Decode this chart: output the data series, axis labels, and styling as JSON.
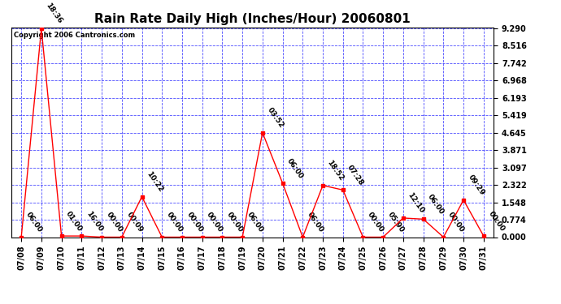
{
  "title": "Rain Rate Daily High (Inches/Hour) 20060801",
  "copyright": "Copyright 2006 Cantronics.com",
  "background_color": "#ffffff",
  "plot_bg_color": "#ffffff",
  "line_color": "red",
  "grid_color": "blue",
  "y_ticks": [
    0.0,
    0.774,
    1.548,
    2.322,
    3.097,
    3.871,
    4.645,
    5.419,
    6.193,
    6.968,
    7.742,
    8.516,
    9.29
  ],
  "data_points": [
    {
      "day": "07/08",
      "value": 0.0,
      "label": "06:00"
    },
    {
      "day": "07/09",
      "value": 9.29,
      "label": "18:36"
    },
    {
      "day": "07/10",
      "value": 0.05,
      "label": "01:00"
    },
    {
      "day": "07/11",
      "value": 0.05,
      "label": "16:00"
    },
    {
      "day": "07/12",
      "value": 0.0,
      "label": "00:00"
    },
    {
      "day": "07/13",
      "value": 0.0,
      "label": "00:09"
    },
    {
      "day": "07/14",
      "value": 1.8,
      "label": "10:22"
    },
    {
      "day": "07/15",
      "value": 0.0,
      "label": "00:00"
    },
    {
      "day": "07/16",
      "value": 0.0,
      "label": "00:00"
    },
    {
      "day": "07/17",
      "value": 0.0,
      "label": "00:00"
    },
    {
      "day": "07/18",
      "value": 0.0,
      "label": "00:00"
    },
    {
      "day": "07/19",
      "value": 0.0,
      "label": "06:00"
    },
    {
      "day": "07/20",
      "value": 4.65,
      "label": "03:52"
    },
    {
      "day": "07/21",
      "value": 2.4,
      "label": "06:00"
    },
    {
      "day": "07/22",
      "value": 0.0,
      "label": "06:00"
    },
    {
      "day": "07/23",
      "value": 2.3,
      "label": "18:52"
    },
    {
      "day": "07/24",
      "value": 2.1,
      "label": "07:28"
    },
    {
      "day": "07/25",
      "value": 0.0,
      "label": "00:00"
    },
    {
      "day": "07/26",
      "value": 0.0,
      "label": "05:90"
    },
    {
      "day": "07/27",
      "value": 0.85,
      "label": "12:10"
    },
    {
      "day": "07/28",
      "value": 0.8,
      "label": "06:00"
    },
    {
      "day": "07/29",
      "value": 0.0,
      "label": "00:00"
    },
    {
      "day": "07/30",
      "value": 1.65,
      "label": "09:29"
    },
    {
      "day": "07/31",
      "value": 0.05,
      "label": "00:00"
    }
  ],
  "ylim_max": 9.29,
  "title_fontsize": 11,
  "tick_fontsize": 7,
  "label_fontsize": 6.5,
  "copyright_fontsize": 6
}
